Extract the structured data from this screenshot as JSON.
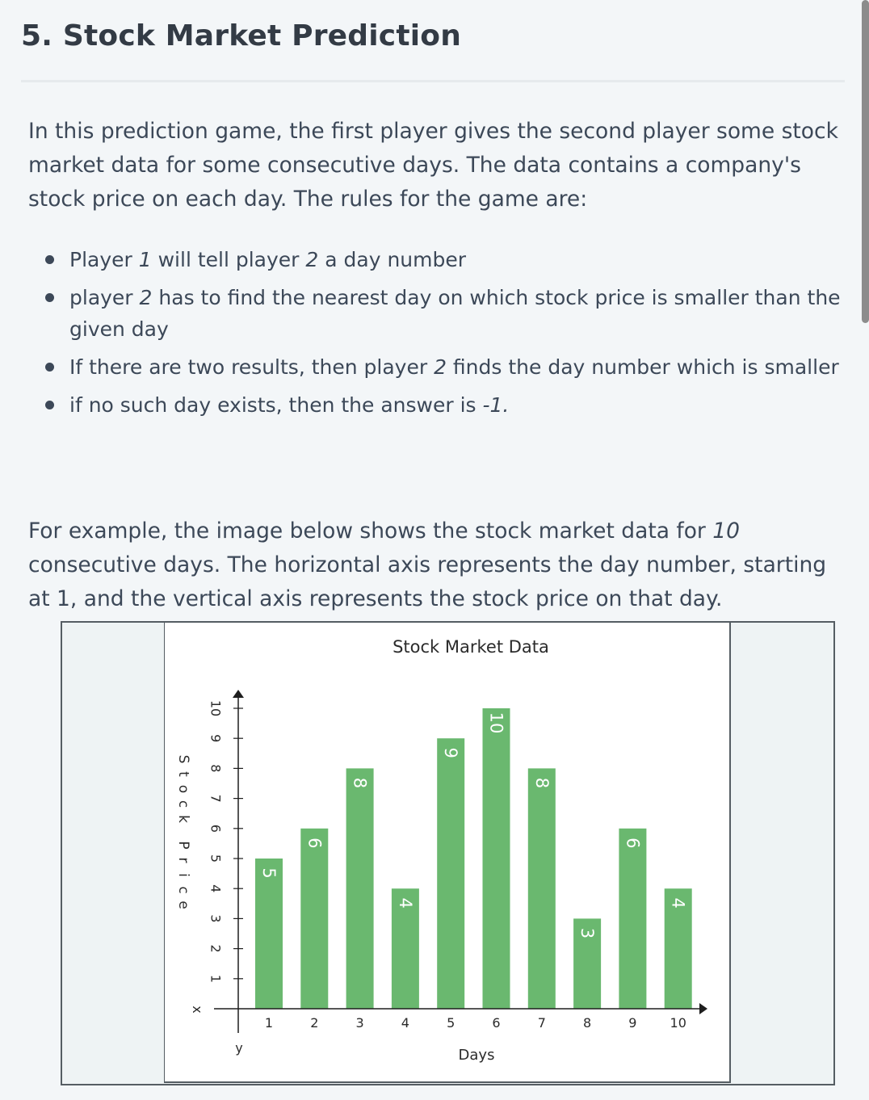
{
  "title": "5. Stock Market Prediction",
  "intro": "In this prediction game, the first player gives the second player some stock market data for some consecutive days. The data contains a company's stock price on each day. The rules for the game are:",
  "rules": [
    {
      "a": "Player ",
      "b": "1",
      "c": " will tell player ",
      "d": "2",
      "e": " a day number"
    },
    {
      "a": "player ",
      "b": "2",
      "c": " has to find the nearest day on which stock price is smaller than the given day"
    },
    {
      "a": "If there are two results, then player ",
      "b": "2",
      "c": " finds the day number which is smaller"
    },
    {
      "a": "if no such day exists, then the answer is ",
      "b": "-1."
    }
  ],
  "example": {
    "a": "For example, the image below shows the stock market data for ",
    "b": "10",
    "c": " consecutive days. The horizontal axis represents the day number, starting at 1, and the vertical axis represents the stock price on that day."
  },
  "chart_data": {
    "type": "bar",
    "title": "Stock Market Data",
    "xlabel": "Days",
    "ylabel": "Stock Price",
    "x_axis_letter": "x",
    "y_axis_letter": "y",
    "categories": [
      "1",
      "2",
      "3",
      "4",
      "5",
      "6",
      "7",
      "8",
      "9",
      "10"
    ],
    "values": [
      5,
      6,
      8,
      4,
      9,
      10,
      8,
      3,
      6,
      4
    ],
    "y_ticks": [
      "1",
      "2",
      "3",
      "4",
      "5",
      "6",
      "7",
      "8",
      "9",
      "10"
    ],
    "ylim": [
      0,
      10
    ],
    "bar_color": "#6ab86f",
    "grid": false,
    "legend": "none"
  }
}
